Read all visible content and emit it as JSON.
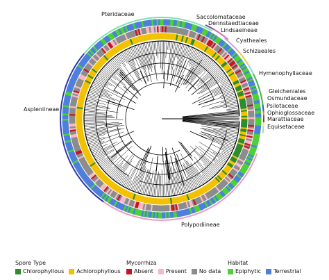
{
  "clades": {
    "pteridaceae": "Pteridaceae",
    "saccolomataceae": "Saccolomataceae",
    "dennstaedtiaceae": "Dennstaedtiaceae",
    "lindsaeineae": "Lindsaeineae",
    "cyatheales": "Cyatheales",
    "schizaeales": "Schizaeales",
    "hymenophyllaceae": "Hymenophyllaceae",
    "gleicheniales": "Gleicheniales",
    "osmundaceae": "Osmundaceae",
    "psilotaceae": "Psilotaceae",
    "ophioglossaceae": "Ophioglossaceae",
    "marattiaceae": "Marattiaceae",
    "equisetaceae": "Equisetaceae",
    "aspleniineae": "Aspleniineae",
    "polypodiineae": "Polypodiineae"
  },
  "clade_colors": {
    "pteridaceae": "#7ee0b4",
    "saccolomataceae": "#7b3fa0",
    "dennstaedtiaceae": "#e06fb0",
    "lindsaeineae": "#c9a7e0",
    "cyatheales": "#f0c24a",
    "schizaeales": "#8fd3e8",
    "hymenophyllaceae": "#3db54a",
    "gleicheniales": "#2f5fb0",
    "osmundaceae": "#e87d2a",
    "psilotaceae": "#7a5a2a",
    "ophioglossaceae": "#b22222",
    "marattiaceae": "#f5e08a",
    "equisetaceae": "#9fe08f",
    "aspleniineae": "#2a3aa8",
    "polypodiineae": "#ee9ac8"
  },
  "legend": {
    "spore_type": {
      "title": "Spore Type",
      "items": [
        {
          "label": "Chlorophyllous",
          "color": "#2e8b2e"
        },
        {
          "label": "Achlorophyllous",
          "color": "#f2c200"
        }
      ]
    },
    "mycorrhiza": {
      "title": "Mycorrhiza",
      "items": [
        {
          "label": "Absent",
          "color": "#c8141e"
        },
        {
          "label": "Present",
          "color": "#f5b8c4"
        },
        {
          "label": "No data",
          "color": "#8c8c8c"
        }
      ]
    },
    "habitat": {
      "title": "Habitat",
      "items": [
        {
          "label": "Epiphytic",
          "color": "#4cd137"
        },
        {
          "label": "Terrestrial",
          "color": "#4f7fdc"
        }
      ]
    }
  }
}
